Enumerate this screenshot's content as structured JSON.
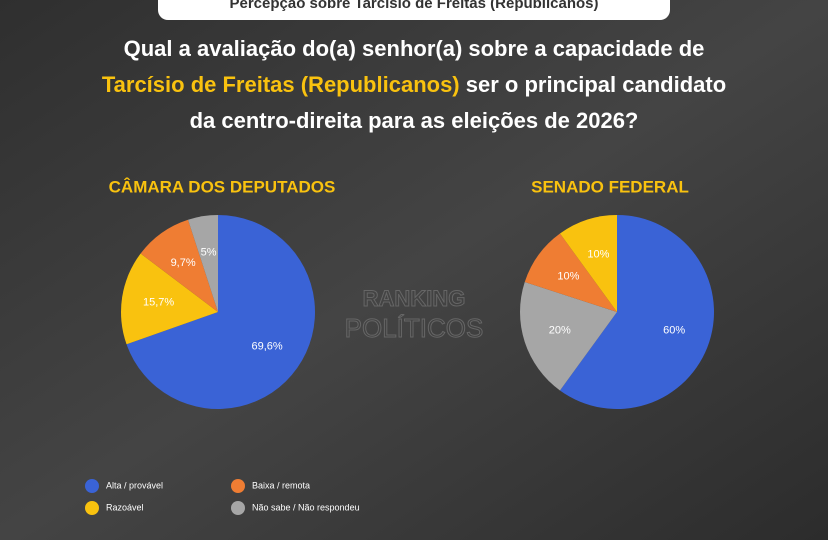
{
  "banner": "Percepção sobre Tarcísio de Freitas (Republicanos)",
  "question": {
    "line1": "Qual a avaliação do(a) senhor(a) sobre a capacidade de",
    "highlight": "Tarcísio de Freitas (Republicanos)",
    "line2_rest": " ser o principal candidato",
    "line3": "da centro-direita para as eleições de 2026?"
  },
  "watermark": {
    "line1": "RANKING",
    "line2": "POLÍTICOS"
  },
  "legend": [
    {
      "label": "Alta / provável",
      "color": "#3a63d6"
    },
    {
      "label": "Baixa / remota",
      "color": "#ef7d33"
    },
    {
      "label": "Razoável",
      "color": "#f9c20f"
    },
    {
      "label": "Não sabe / Não respondeu",
      "color": "#a6a6a6"
    }
  ],
  "chart_data": [
    {
      "type": "pie",
      "title": "CÂMARA DOS DEPUTADOS",
      "values": [
        69.6,
        15.7,
        9.7,
        5
      ],
      "value_labels": [
        "69,6%",
        "15,7%",
        "9,7%",
        "5%"
      ],
      "colors": [
        "#3a63d6",
        "#f9c20f",
        "#ef7d33",
        "#a6a6a6"
      ]
    },
    {
      "type": "pie",
      "title": "SENADO FEDERAL",
      "values": [
        60,
        20,
        10,
        10
      ],
      "value_labels": [
        "60%",
        "20%",
        "10%",
        "10%"
      ],
      "colors": [
        "#3a63d6",
        "#a6a6a6",
        "#ef7d33",
        "#f9c20f"
      ]
    }
  ]
}
